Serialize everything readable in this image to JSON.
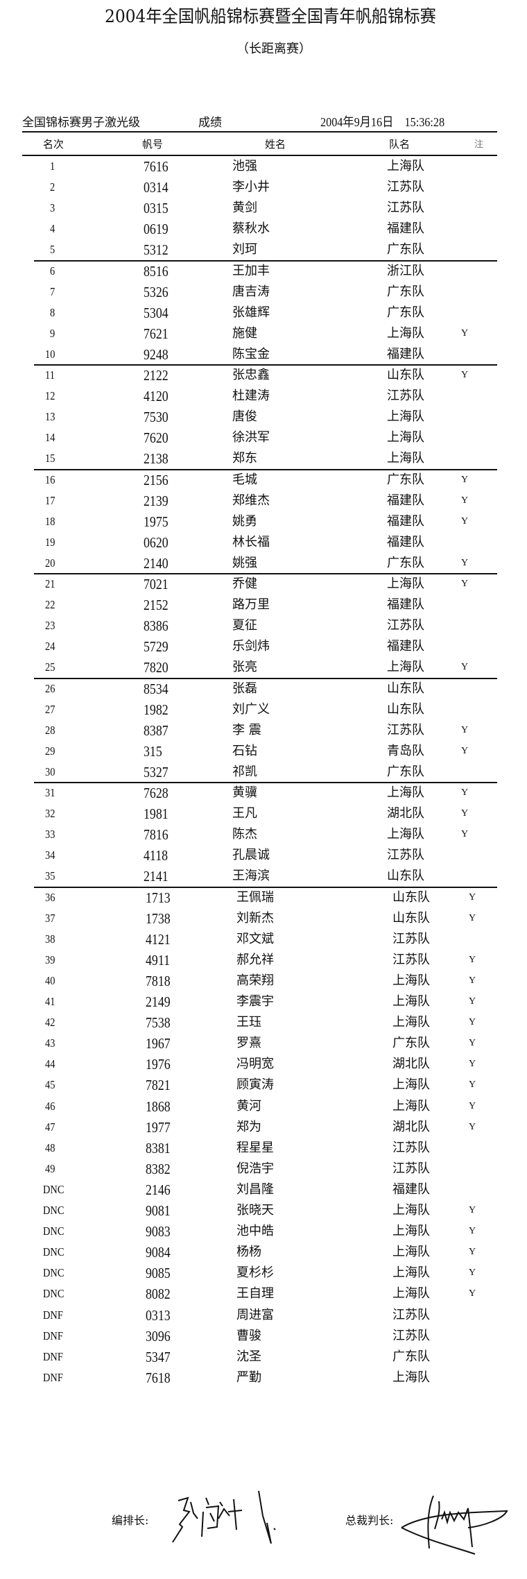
{
  "title": "2004年全国帆船锦标赛暨全国青年帆船锦标赛",
  "subtitle": "（长距离赛）",
  "event": "全国锦标赛男子激光级",
  "result_label": "成绩",
  "datetime": "2004年9月16日　15:36:28",
  "columns": {
    "rank": "名次",
    "sail": "帆号",
    "name": "姓名",
    "team": "队名",
    "note": "注"
  },
  "rows": [
    [
      "1",
      "7616",
      "池强",
      "上海队",
      ""
    ],
    [
      "2",
      "0314",
      "李小井",
      "江苏队",
      ""
    ],
    [
      "3",
      "0315",
      "黄剑",
      "江苏队",
      ""
    ],
    [
      "4",
      "0619",
      "蔡秋水",
      "福建队",
      ""
    ],
    [
      "5",
      "5312",
      "刘珂",
      "广东队",
      ""
    ],
    [
      "6",
      "8516",
      "王加丰",
      "浙江队",
      ""
    ],
    [
      "7",
      "5326",
      "唐吉涛",
      "广东队",
      ""
    ],
    [
      "8",
      "5304",
      "张雄辉",
      "广东队",
      ""
    ],
    [
      "9",
      "7621",
      "施健",
      "上海队",
      "Y"
    ],
    [
      "10",
      "9248",
      "陈宝金",
      "福建队",
      ""
    ],
    [
      "11",
      "2122",
      "张忠鑫",
      "山东队",
      "Y"
    ],
    [
      "12",
      "4120",
      "杜建涛",
      "江苏队",
      ""
    ],
    [
      "13",
      "7530",
      "唐俊",
      "上海队",
      ""
    ],
    [
      "14",
      "7620",
      "徐洪军",
      "上海队",
      ""
    ],
    [
      "15",
      "2138",
      "郑东",
      "上海队",
      ""
    ],
    [
      "16",
      "2156",
      "毛城",
      "广东队",
      "Y"
    ],
    [
      "17",
      "2139",
      "郑维杰",
      "福建队",
      "Y"
    ],
    [
      "18",
      "1975",
      "姚勇",
      "福建队",
      "Y"
    ],
    [
      "19",
      "0620",
      "林长福",
      "福建队",
      ""
    ],
    [
      "20",
      "2140",
      "姚强",
      "广东队",
      "Y"
    ],
    [
      "21",
      "7021",
      "乔健",
      "上海队",
      "Y"
    ],
    [
      "22",
      "2152",
      "路万里",
      "福建队",
      ""
    ],
    [
      "23",
      "8386",
      "夏征",
      "江苏队",
      ""
    ],
    [
      "24",
      "5729",
      "乐剑炜",
      "福建队",
      ""
    ],
    [
      "25",
      "7820",
      "张亮",
      "上海队",
      "Y"
    ],
    [
      "26",
      "8534",
      "张磊",
      "山东队",
      ""
    ],
    [
      "27",
      "1982",
      "刘广义",
      "山东队",
      ""
    ],
    [
      "28",
      "8387",
      "李 震",
      "江苏队",
      "Y"
    ],
    [
      "29",
      "315",
      "石钻",
      "青岛队",
      "Y"
    ],
    [
      "30",
      "5327",
      "祁凯",
      "广东队",
      ""
    ],
    [
      "31",
      "7628",
      "黄骥",
      "上海队",
      "Y"
    ],
    [
      "32",
      "1981",
      "王凡",
      "湖北队",
      "Y"
    ],
    [
      "33",
      "7816",
      "陈杰",
      "上海队",
      "Y"
    ],
    [
      "34",
      "4118",
      "孔晨诚",
      "江苏队",
      ""
    ],
    [
      "35",
      "2141",
      "王海滨",
      "山东队",
      ""
    ],
    [
      "36",
      "1713",
      "王佩瑞",
      "山东队",
      "Y"
    ],
    [
      "37",
      "1738",
      "刘新杰",
      "山东队",
      "Y"
    ],
    [
      "38",
      "4121",
      "邓文斌",
      "江苏队",
      ""
    ],
    [
      "39",
      "4911",
      "郝允祥",
      "江苏队",
      "Y"
    ],
    [
      "40",
      "7818",
      "高荣翔",
      "上海队",
      "Y"
    ],
    [
      "41",
      "2149",
      "李震宇",
      "上海队",
      "Y"
    ],
    [
      "42",
      "7538",
      "王珏",
      "上海队",
      "Y"
    ],
    [
      "43",
      "1967",
      "罗熹",
      "广东队",
      "Y"
    ],
    [
      "44",
      "1976",
      "冯明宽",
      "湖北队",
      "Y"
    ],
    [
      "45",
      "7821",
      "顾寅涛",
      "上海队",
      "Y"
    ],
    [
      "46",
      "1868",
      "黄河",
      "上海队",
      "Y"
    ],
    [
      "47",
      "1977",
      "郑为",
      "湖北队",
      "Y"
    ],
    [
      "48",
      "8381",
      "程星星",
      "江苏队",
      ""
    ],
    [
      "49",
      "8382",
      "倪浩宇",
      "江苏队",
      ""
    ],
    [
      "DNC",
      "2146",
      "刘昌隆",
      "福建队",
      ""
    ],
    [
      "DNC",
      "9081",
      "张晓天",
      "上海队",
      "Y"
    ],
    [
      "DNC",
      "9083",
      "池中皓",
      "上海队",
      "Y"
    ],
    [
      "DNC",
      "9084",
      "杨杨",
      "上海队",
      "Y"
    ],
    [
      "DNC",
      "9085",
      "夏杉杉",
      "上海队",
      "Y"
    ],
    [
      "DNC",
      "8082",
      "王自理",
      "上海队",
      "Y"
    ],
    [
      "DNF",
      "0313",
      "周进富",
      "江苏队",
      ""
    ],
    [
      "DNF",
      "3096",
      "曹骏",
      "江苏队",
      ""
    ],
    [
      "DNF",
      "5347",
      "沈圣",
      "广东队",
      ""
    ],
    [
      "DNF",
      "7618",
      "严勤",
      "上海队",
      ""
    ]
  ],
  "signatures": {
    "scheduler_label": "编排长:",
    "scheduler_signature": "张海斌",
    "chief_referee_label": "总裁判长:"
  }
}
